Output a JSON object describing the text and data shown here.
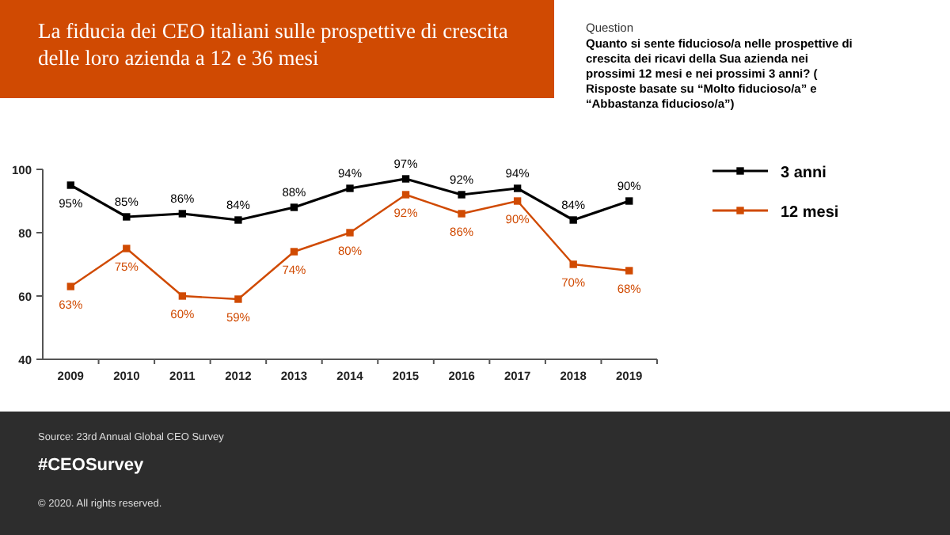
{
  "chart_data": {
    "type": "line",
    "title": "La fiducia dei CEO italiani sulle prospettive di crescita delle loro azienda a 12 e 36 mesi",
    "categories": [
      "2009",
      "2010",
      "2011",
      "2012",
      "2013",
      "2014",
      "2015",
      "2016",
      "2017",
      "2018",
      "2019"
    ],
    "series": [
      {
        "name": "3 anni",
        "color": "#000000",
        "values": [
          95,
          85,
          86,
          84,
          88,
          94,
          97,
          92,
          94,
          84,
          90
        ],
        "value_labels": [
          "95%",
          "85%",
          "86%",
          "84%",
          "88%",
          "94%",
          "97%",
          "92%",
          "94%",
          "84%",
          "90%"
        ]
      },
      {
        "name": "12 mesi",
        "color": "#d04a02",
        "values": [
          63,
          75,
          60,
          59,
          74,
          80,
          92,
          86,
          90,
          70,
          68
        ],
        "value_labels": [
          "63%",
          "75%",
          "60%",
          "59%",
          "74%",
          "80%",
          "92%",
          "86%",
          "90%",
          "70%",
          "68%"
        ]
      }
    ],
    "ylim": [
      40,
      100
    ],
    "yticks": [
      40,
      60,
      80,
      100
    ],
    "marker": "square",
    "legend": "right",
    "annotations": [
      "Question",
      "Quanto si sente fiducioso/a nelle prospettive di crescita dei ricavi della Sua azienda nei prossimi 12 mesi e nei prossimi 3 anni? ( Risposte basate su “Molto fiducioso/a” e “Abbastanza fiducioso/a”)",
      "Source: 23rd Annual Global CEO Survey",
      "#CEOSurvey",
      "© 2020. All rights reserved."
    ]
  }
}
